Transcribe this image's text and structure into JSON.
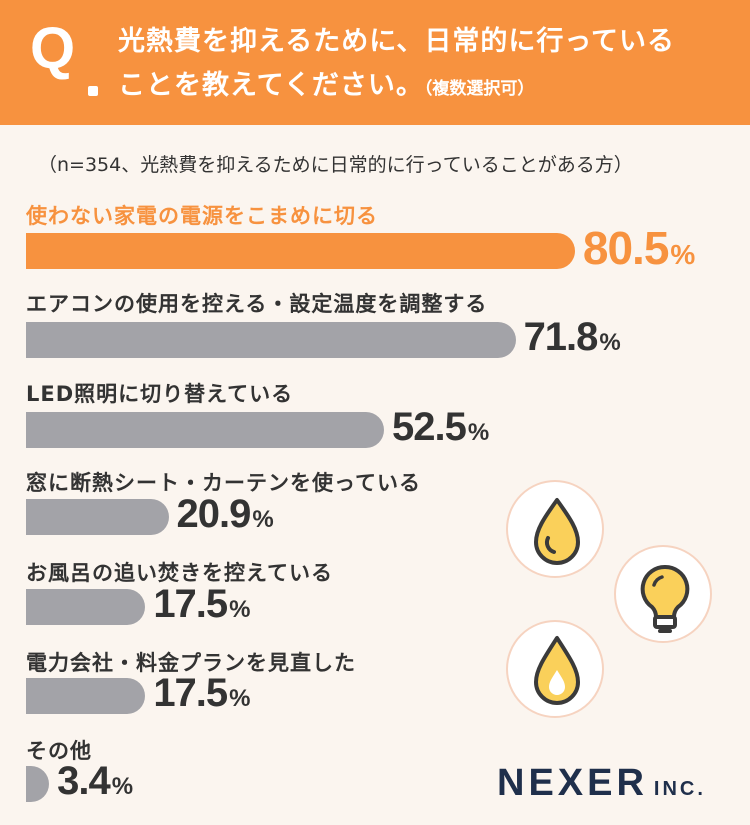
{
  "header": {
    "q_letter": "Q",
    "question_line1": "光熱費を抑えるために、日常的に行っている",
    "question_line2": "ことを教えてください。",
    "question_note": "（複数選択可）"
  },
  "subtitle": "（n=354、光熱費を抑えるために日常的に行っていることがある方）",
  "chart_data": {
    "type": "bar",
    "orientation": "horizontal",
    "unit": "%",
    "categories": [
      "使わない家電の電源をこまめに切る",
      "エアコンの使用を控える・設定温度を調整する",
      "LED照明に切り替えている",
      "窓に断熱シート・カーテンを使っている",
      "お風呂の追い焚きを控えている",
      "電力会社・料金プランを見直した",
      "その他"
    ],
    "values": [
      80.5,
      71.8,
      52.5,
      20.9,
      17.5,
      17.5,
      3.4
    ],
    "value_labels": [
      "80.5",
      "71.8",
      "52.5",
      "20.9",
      "17.5",
      "17.5",
      "3.4"
    ],
    "highlight_index": 0,
    "colors": {
      "highlight": "#f7923f",
      "default": "#a3a3a8"
    }
  },
  "icons": [
    "oil-drop-icon",
    "light-bulb-icon",
    "flame-drop-icon"
  ],
  "logo": {
    "main": "NEXER",
    "suffix": "INC."
  }
}
